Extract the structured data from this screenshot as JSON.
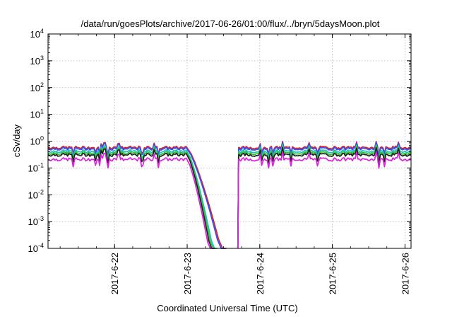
{
  "chart_data": {
    "type": "line",
    "title": "/data/run/goesPlots/archive/2017-06-26/01:00/flux/../bryn/5daysMoon.plot",
    "xlabel": "Coordinated Universal Time (UTC)",
    "ylabel": "cSv/day",
    "y_scale": "log",
    "ylim": [
      0.0001,
      10000
    ],
    "xlim": [
      "2017-06-21T02:00",
      "2017-06-26T02:00"
    ],
    "y_ticks": [
      {
        "base": "10",
        "exp": "4"
      },
      {
        "base": "10",
        "exp": "3"
      },
      {
        "base": "10",
        "exp": "2"
      },
      {
        "base": "10",
        "exp": "1"
      },
      {
        "base": "10",
        "exp": "0"
      },
      {
        "base": "10",
        "exp": "-1"
      },
      {
        "base": "10",
        "exp": "-2"
      },
      {
        "base": "10",
        "exp": "-3"
      },
      {
        "base": "10",
        "exp": "-4"
      }
    ],
    "x_ticks": [
      "2017-6-22",
      "2017-6-23",
      "2017-6-24",
      "2017-6-25",
      "2017-6-26"
    ],
    "grid": true,
    "legend": "none",
    "series": [
      {
        "color": "#e02020",
        "base_level": 0.58,
        "drop_end": "2017-06-23T13:00",
        "gap_end": "2017-06-23T17:00"
      },
      {
        "color": "#3050ff",
        "base_level": 0.52,
        "drop_end": "2017-06-23T12:30",
        "gap_end": "2017-06-23T17:00"
      },
      {
        "color": "#20c0c0",
        "base_level": 0.42,
        "drop_end": "2017-06-23T10:00",
        "gap_end": "2017-06-23T17:00"
      },
      {
        "color": "#30c030",
        "base_level": 0.36,
        "drop_end": "2017-06-23T09:30",
        "gap_end": "2017-06-23T17:00"
      },
      {
        "color": "#202020",
        "base_level": 0.31,
        "drop_end": "2017-06-23T09:00",
        "gap_end": "2017-06-23T17:00"
      },
      {
        "color": "#e020e0",
        "base_level": 0.21,
        "drop_end": "2017-06-23T08:30",
        "gap_end": "2017-06-23T17:00"
      }
    ]
  }
}
